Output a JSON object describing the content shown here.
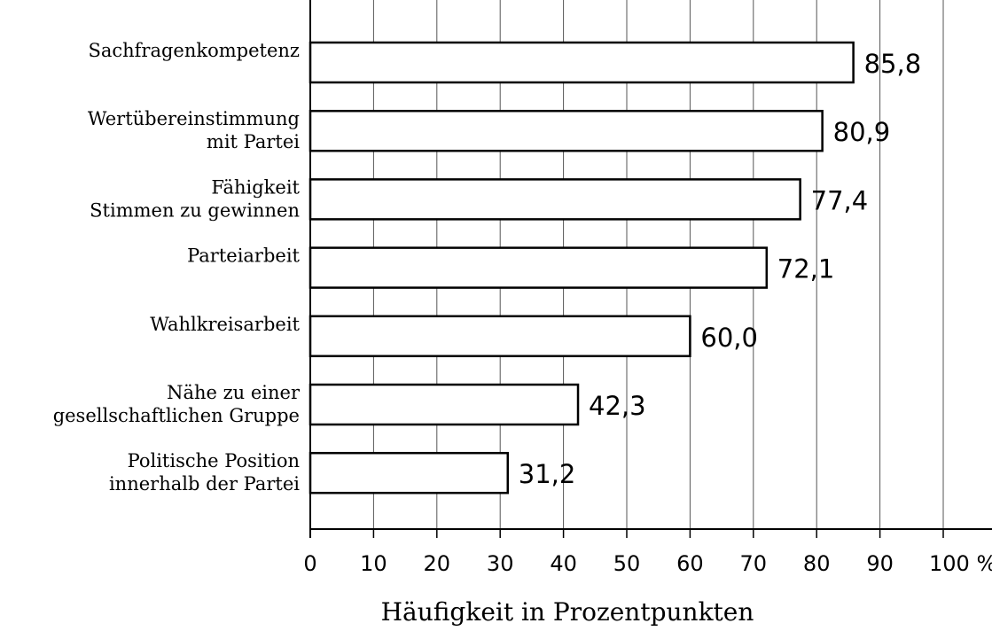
{
  "chart_data": {
    "type": "bar",
    "orientation": "horizontal",
    "categories": [
      "Sachfragenkompetenz",
      "Wertübereinstimmung\nmit Partei",
      "Fähigkeit\nStimmen zu gewinnen",
      "Parteiarbeit",
      "Wahlkreisarbeit",
      "Nähe zu einer\ngesellschaftlichen Gruppe",
      "Politische Position\ninnerhalb der Partei"
    ],
    "values": [
      85.8,
      80.9,
      77.4,
      72.1,
      60.0,
      42.3,
      31.2
    ],
    "value_labels": [
      "85,8",
      "80,9",
      "77,4",
      "72,1",
      "60,0",
      "42,3",
      "31,2"
    ],
    "color": "#ffffff",
    "xlim": [
      0,
      100
    ],
    "xticks": [
      0,
      10,
      20,
      30,
      40,
      50,
      60,
      70,
      80,
      90,
      {
        "value": 100,
        "label": "100 %"
      }
    ],
    "xlabel": "Häufigkeit in Prozentpunkten",
    "grid": true
  }
}
